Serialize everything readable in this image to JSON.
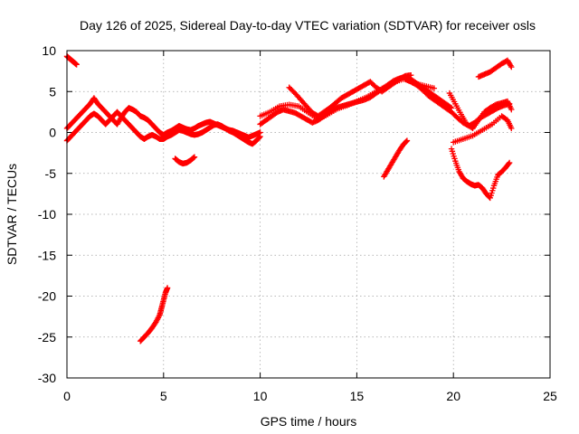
{
  "chart_data": {
    "type": "scatter",
    "title": "Day 126 of 2025, Sidereal Day-to-day VTEC variation (SDTVAR) for receiver osls",
    "xlabel": "GPS time / hours",
    "ylabel": "SDTVAR / TECUs",
    "xlim": [
      0,
      25
    ],
    "ylim": [
      -30,
      10
    ],
    "xticks": [
      0,
      5,
      10,
      15,
      20,
      25
    ],
    "yticks": [
      -30,
      -25,
      -20,
      -15,
      -10,
      -5,
      0,
      5,
      10
    ],
    "grid": true,
    "marker": "plus",
    "color": "#ff0000",
    "series": [
      {
        "x": [
          0.0,
          0.2,
          0.4,
          0.6,
          0.8,
          1.0,
          1.2,
          1.4,
          1.6,
          1.8,
          2.0,
          2.2,
          2.4,
          2.6,
          2.8,
          3.0,
          3.2,
          3.4,
          3.6,
          3.8,
          4.0,
          4.2,
          4.4,
          4.6,
          4.8,
          5.0,
          5.2,
          5.4,
          5.6,
          5.8,
          6.0,
          6.2,
          6.4,
          6.6,
          6.8,
          7.0,
          7.2,
          7.4,
          7.6,
          7.8,
          8.0,
          8.2,
          8.4,
          8.6,
          8.8,
          9.0,
          9.2,
          9.4,
          9.6,
          9.8,
          10.0
        ],
        "y": [
          -1.0,
          -0.5,
          0.0,
          0.5,
          1.0,
          1.5,
          2.0,
          2.3,
          2.0,
          1.5,
          1.0,
          1.5,
          2.0,
          2.5,
          2.0,
          1.5,
          1.0,
          0.5,
          0.0,
          -0.5,
          -0.8,
          -0.5,
          -0.3,
          -0.5,
          -0.8,
          -0.8,
          -0.5,
          -0.3,
          0.0,
          0.3,
          0.2,
          0.0,
          -0.2,
          -0.3,
          -0.2,
          0.0,
          0.3,
          0.6,
          0.9,
          1.0,
          0.8,
          0.5,
          0.2,
          0.0,
          -0.3,
          -0.6,
          -0.9,
          -1.2,
          -1.4,
          -1.0,
          -0.5
        ]
      },
      {
        "x": [
          0.0,
          0.2,
          0.4,
          0.6,
          0.8,
          1.0,
          1.2,
          1.4,
          1.6,
          1.8,
          2.0,
          2.2,
          2.4,
          2.6,
          2.8,
          3.0,
          3.2,
          3.4,
          3.6,
          3.8,
          4.0,
          4.2,
          4.4,
          4.6,
          4.8,
          5.0,
          5.2,
          5.4,
          5.6,
          5.8,
          6.0,
          6.2,
          6.4,
          6.6,
          6.8,
          7.0,
          7.2,
          7.4,
          7.6,
          7.8,
          8.0,
          8.2,
          8.4,
          8.6,
          8.8,
          9.0,
          9.2,
          9.4,
          9.6,
          9.8,
          10.0
        ],
        "y": [
          0.5,
          1.0,
          1.5,
          2.0,
          2.5,
          3.0,
          3.5,
          4.2,
          3.5,
          3.0,
          2.5,
          2.0,
          1.5,
          1.0,
          1.8,
          2.5,
          3.0,
          2.8,
          2.5,
          2.0,
          1.8,
          1.5,
          1.0,
          0.5,
          0.0,
          -0.3,
          0.0,
          0.2,
          0.5,
          0.8,
          0.6,
          0.4,
          0.3,
          0.5,
          0.8,
          1.0,
          1.2,
          1.3,
          1.1,
          0.9,
          0.7,
          0.5,
          0.3,
          0.2,
          0.0,
          -0.2,
          -0.4,
          -0.6,
          -0.4,
          -0.2,
          0.0
        ]
      },
      {
        "x": [
          10.0,
          10.3,
          10.6,
          10.9,
          11.2,
          11.5,
          11.8,
          12.1,
          12.4,
          12.7,
          13.0,
          13.3,
          13.6,
          13.9,
          14.2,
          14.5,
          14.8,
          15.1,
          15.4,
          15.7,
          16.0,
          16.3,
          16.6,
          16.9,
          17.2,
          17.5,
          17.8,
          18.1,
          18.4,
          18.7,
          19.0,
          19.3,
          19.6,
          19.9
        ],
        "y": [
          1.0,
          1.5,
          2.0,
          2.5,
          2.8,
          2.6,
          2.4,
          2.0,
          1.6,
          1.2,
          1.5,
          2.0,
          2.5,
          3.0,
          3.2,
          3.4,
          3.6,
          3.8,
          4.0,
          4.3,
          4.8,
          5.3,
          5.8,
          6.3,
          6.6,
          6.8,
          6.5,
          6.0,
          5.5,
          5.0,
          4.5,
          4.0,
          3.5,
          3.0
        ]
      },
      {
        "x": [
          11.5,
          11.8,
          12.1,
          12.4,
          12.7,
          13.0,
          13.3,
          13.6,
          13.9,
          14.2,
          14.5,
          14.8,
          15.1,
          15.4,
          15.7,
          16.0,
          16.3,
          16.6,
          16.9,
          17.2,
          17.5,
          17.8
        ],
        "y": [
          5.5,
          4.8,
          4.0,
          3.2,
          2.4,
          2.0,
          2.5,
          3.0,
          3.6,
          4.2,
          4.6,
          5.0,
          5.4,
          5.8,
          6.2,
          5.5,
          5.0,
          5.5,
          6.0,
          6.5,
          6.9,
          7.0
        ]
      },
      {
        "x": [
          10.0,
          10.5,
          11.0,
          11.5,
          12.0,
          12.5,
          13.0,
          13.5,
          14.0,
          14.5,
          15.0,
          15.5,
          16.0,
          16.5,
          17.0,
          17.5,
          18.0,
          18.5,
          19.0
        ],
        "y": [
          2.0,
          2.5,
          3.2,
          3.4,
          3.2,
          2.4,
          1.6,
          2.2,
          2.9,
          3.3,
          3.8,
          4.3,
          5.0,
          5.6,
          6.2,
          6.6,
          6.0,
          5.7,
          5.4
        ]
      },
      {
        "x": [
          17.5,
          17.8,
          18.1,
          18.4,
          18.7,
          19.0,
          19.3,
          19.6,
          19.9,
          20.2,
          20.5,
          20.8,
          21.1,
          21.4,
          21.7,
          22.0,
          22.3,
          22.6,
          22.9
        ],
        "y": [
          6.5,
          6.2,
          5.8,
          5.2,
          4.5,
          4.0,
          3.5,
          3.0,
          2.5,
          1.8,
          1.2,
          0.8,
          1.2,
          1.8,
          2.2,
          2.6,
          3.0,
          3.3,
          3.5
        ]
      },
      {
        "x": [
          19.8,
          20.1,
          20.4,
          20.7,
          21.0,
          21.3,
          21.6,
          21.9,
          22.2,
          22.5,
          22.8,
          23.0
        ],
        "y": [
          4.8,
          3.5,
          2.2,
          1.0,
          0.5,
          1.5,
          2.5,
          3.0,
          3.4,
          3.6,
          3.8,
          2.8
        ]
      },
      {
        "x": [
          19.9,
          20.1,
          20.3,
          20.5,
          20.7,
          20.9,
          21.1,
          21.3,
          21.5,
          21.7,
          21.9,
          22.1,
          22.3,
          22.5,
          22.7,
          22.9
        ],
        "y": [
          -2.0,
          -3.5,
          -4.8,
          -5.6,
          -6.0,
          -6.3,
          -6.5,
          -6.4,
          -6.8,
          -7.5,
          -8.0,
          -6.5,
          -5.2,
          -4.8,
          -4.3,
          -3.7
        ]
      },
      {
        "x": [
          20.0,
          20.5,
          21.0,
          21.5,
          22.0,
          22.5,
          22.8,
          23.0
        ],
        "y": [
          -1.2,
          -0.8,
          -0.4,
          0.3,
          1.0,
          2.0,
          1.5,
          0.5
        ]
      },
      {
        "x": [
          21.3,
          21.6,
          21.9,
          22.2,
          22.5,
          22.8,
          23.0
        ],
        "y": [
          6.8,
          7.1,
          7.4,
          7.9,
          8.4,
          8.8,
          8.0
        ]
      },
      {
        "x": [
          16.4,
          16.6,
          16.8,
          17.0,
          17.2,
          17.4,
          17.6
        ],
        "y": [
          -5.4,
          -4.6,
          -3.8,
          -3.0,
          -2.2,
          -1.5,
          -1.0
        ]
      },
      {
        "x": [
          0.0,
          0.1,
          0.2,
          0.3,
          0.4,
          0.5
        ],
        "y": [
          9.3,
          9.1,
          8.9,
          8.7,
          8.5,
          8.3
        ]
      },
      {
        "x": [
          5.6,
          5.8,
          6.0,
          6.2,
          6.4,
          6.6
        ],
        "y": [
          -3.2,
          -3.6,
          -3.8,
          -3.7,
          -3.4,
          -3.0
        ]
      },
      {
        "x": [
          3.8,
          4.0,
          4.2,
          4.4,
          4.6,
          4.8,
          4.9,
          5.0,
          5.1,
          5.2
        ],
        "y": [
          -25.5,
          -25.0,
          -24.5,
          -23.9,
          -23.2,
          -22.3,
          -21.4,
          -20.5,
          -19.6,
          -19.0
        ]
      }
    ]
  }
}
